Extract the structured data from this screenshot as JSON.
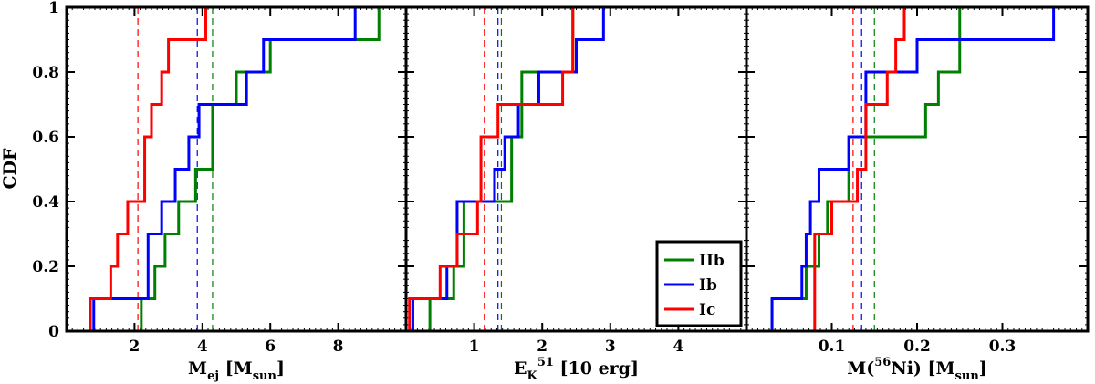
{
  "chart_data": [
    {
      "type": "line",
      "step": true,
      "panel": "left",
      "xlabel": {
        "main": "M",
        "sub": "ej",
        "rest": " [M",
        "sub2": "sun",
        "end": "]"
      },
      "ylabel": "CDF",
      "xlim": [
        0,
        10
      ],
      "ylim": [
        0,
        1
      ],
      "xticks": [
        2,
        4,
        6,
        8
      ],
      "yticks": [
        0,
        0.2,
        0.4,
        0.6,
        0.8,
        1
      ],
      "ytick_labels": [
        "0",
        "0.2",
        "0.4",
        "0.6",
        "0.8",
        "1"
      ],
      "series": [
        {
          "name": "IIb",
          "color": "#008000",
          "x": [
            2.2,
            2.6,
            2.9,
            3.3,
            3.8,
            4.3,
            5.0,
            6.0,
            9.2
          ],
          "y": [
            0.1,
            0.2,
            0.3,
            0.4,
            0.5,
            0.7,
            0.8,
            0.9,
            1.0
          ],
          "mean": 4.3
        },
        {
          "name": "Ib",
          "color": "#0000ff",
          "x": [
            0.8,
            2.4,
            2.8,
            3.2,
            3.6,
            3.9,
            5.3,
            5.8,
            8.5
          ],
          "y": [
            0.1,
            0.3,
            0.4,
            0.5,
            0.6,
            0.7,
            0.8,
            0.9,
            1.0
          ],
          "mean": 3.85
        },
        {
          "name": "Ic",
          "color": "#ff0000",
          "x": [
            0.7,
            1.3,
            1.5,
            1.8,
            2.3,
            2.5,
            2.8,
            3.0,
            4.1
          ],
          "y": [
            0.1,
            0.2,
            0.3,
            0.4,
            0.6,
            0.7,
            0.8,
            0.9,
            1.0
          ],
          "mean": 2.1
        }
      ]
    },
    {
      "type": "line",
      "step": true,
      "panel": "middle",
      "xlabel": {
        "main": "E",
        "sub": "K",
        "rest": " [10",
        "sup": "51",
        "end": " erg]"
      },
      "xlim": [
        0,
        5
      ],
      "ylim": [
        0,
        1
      ],
      "xticks": [
        1,
        2,
        3,
        4
      ],
      "legend": {
        "position": "bottom-right",
        "entries": [
          "IIb",
          "Ib",
          "Ic"
        ]
      },
      "series": [
        {
          "name": "IIb",
          "color": "#008000",
          "x": [
            0.35,
            0.7,
            0.85,
            1.55,
            1.7,
            2.45
          ],
          "y": [
            0.1,
            0.2,
            0.4,
            0.6,
            0.8,
            1.0
          ],
          "mean": 1.4
        },
        {
          "name": "Ib",
          "color": "#0000ff",
          "x": [
            0.1,
            0.6,
            0.75,
            1.3,
            1.45,
            1.65,
            1.95,
            2.5,
            2.9
          ],
          "y": [
            0.1,
            0.2,
            0.4,
            0.5,
            0.6,
            0.7,
            0.8,
            0.9,
            1.0
          ],
          "mean": 1.35
        },
        {
          "name": "Ic",
          "color": "#ff0000",
          "x": [
            0.05,
            0.5,
            0.75,
            1.05,
            1.1,
            1.35,
            2.3,
            2.45
          ],
          "y": [
            0.1,
            0.2,
            0.3,
            0.4,
            0.6,
            0.7,
            0.8,
            1.0
          ],
          "mean": 1.15
        }
      ]
    },
    {
      "type": "line",
      "step": true,
      "panel": "right",
      "xlabel": {
        "main": "M(",
        "sup": "56",
        "rest": "Ni) [M",
        "sub2": "sun",
        "end": "]"
      },
      "xlim": [
        0,
        0.4
      ],
      "ylim": [
        0,
        1
      ],
      "xticks": [
        0.1,
        0.2,
        0.3
      ],
      "xtick_labels": [
        "0.1",
        "0.2",
        "0.3"
      ],
      "series": [
        {
          "name": "IIb",
          "color": "#008000",
          "x": [
            0.03,
            0.07,
            0.085,
            0.095,
            0.12,
            0.21,
            0.225,
            0.25
          ],
          "y": [
            0.1,
            0.2,
            0.3,
            0.4,
            0.6,
            0.7,
            0.8,
            1.0
          ],
          "mean": 0.15
        },
        {
          "name": "Ib",
          "color": "#0000ff",
          "x": [
            0.03,
            0.065,
            0.07,
            0.075,
            0.085,
            0.12,
            0.14,
            0.2,
            0.36
          ],
          "y": [
            0.1,
            0.2,
            0.3,
            0.4,
            0.5,
            0.6,
            0.8,
            0.9,
            1.0
          ],
          "mean": 0.135
        },
        {
          "name": "Ic",
          "color": "#ff0000",
          "x": [
            0.08,
            0.1,
            0.13,
            0.14,
            0.165,
            0.175,
            0.185
          ],
          "y": [
            0.3,
            0.4,
            0.5,
            0.7,
            0.8,
            0.9,
            1.0
          ],
          "mean": 0.125
        }
      ]
    }
  ]
}
